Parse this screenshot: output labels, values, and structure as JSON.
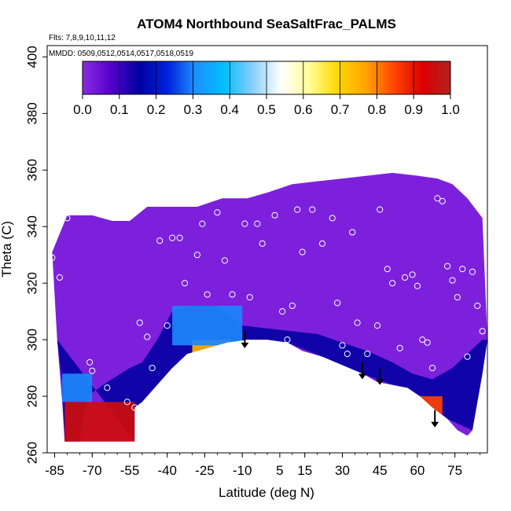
{
  "chart_data": {
    "type": "heatmap",
    "title": "ATOM4 Northbound SeaSaltFrac_PALMS",
    "info_lines": [
      "Flts: 7,8,9,10,11,12",
      "MMDD: 0509,0512,0514,0517,0518,0519"
    ],
    "xlabel": "Latitude (deg N)",
    "ylabel": "Theta (C)",
    "xlim": [
      -88,
      88
    ],
    "ylim": [
      260,
      404
    ],
    "x_ticks": [
      -85,
      -70,
      -55,
      -40,
      -25,
      -10,
      5,
      15,
      30,
      45,
      60,
      75
    ],
    "y_ticks": [
      260,
      280,
      300,
      320,
      340,
      360,
      380,
      400
    ],
    "colorbar": {
      "range": [
        0.0,
        1.0
      ],
      "ticks": [
        "0.0",
        "0.1",
        "0.2",
        "0.3",
        "0.4",
        "0.5",
        "0.6",
        "0.7",
        "0.8",
        "0.9",
        "1.0"
      ],
      "colors": [
        "#8a2be2",
        "#5500cc",
        "#0000a0",
        "#0022dd",
        "#1e90ff",
        "#00bfff",
        "#87cefa",
        "#ffffff",
        "#ffff99",
        "#ffd700",
        "#ffa500",
        "#ff4500",
        "#dd0000",
        "#b22222"
      ]
    },
    "background_value": 0.02,
    "regions": [
      {
        "name": "antarctic-high-fraction",
        "lat": [
          -81,
          -53
        ],
        "theta": [
          264,
          278
        ],
        "value": 0.95
      },
      {
        "name": "southern-edge-transition",
        "lat": [
          -82,
          -70
        ],
        "theta": [
          278,
          288
        ],
        "value": 0.3
      },
      {
        "name": "subtropical-lower-layer",
        "lat": [
          -30,
          -15
        ],
        "theta": [
          294,
          300
        ],
        "value": 0.75
      },
      {
        "name": "mid-lat-gradient",
        "lat": [
          -38,
          -10
        ],
        "theta": [
          298,
          312
        ],
        "value": 0.3
      },
      {
        "name": "northern-high-fraction",
        "lat": [
          61,
          70
        ],
        "theta": [
          266,
          280
        ],
        "value": 0.85
      }
    ],
    "arrows": [
      {
        "lat": -9,
        "theta": 297
      },
      {
        "lat": 38,
        "theta": 286
      },
      {
        "lat": 45,
        "theta": 284
      },
      {
        "lat": 67,
        "theta": 269
      }
    ],
    "sample_points": [
      [
        -86,
        329
      ],
      [
        -83,
        322
      ],
      [
        -80,
        343
      ],
      [
        -71,
        292
      ],
      [
        -70,
        289
      ],
      [
        -64,
        283
      ],
      [
        -56,
        278
      ],
      [
        -53,
        276
      ],
      [
        -51,
        306
      ],
      [
        -48,
        301
      ],
      [
        -46,
        290
      ],
      [
        -43,
        335
      ],
      [
        -40,
        305
      ],
      [
        -38,
        336
      ],
      [
        -35,
        336
      ],
      [
        -33,
        320
      ],
      [
        -28,
        330
      ],
      [
        -26,
        341
      ],
      [
        -24,
        316
      ],
      [
        -20,
        345
      ],
      [
        -17,
        328
      ],
      [
        -14,
        316
      ],
      [
        -9,
        341
      ],
      [
        -7,
        315
      ],
      [
        -4,
        341
      ],
      [
        -2,
        334
      ],
      [
        3,
        344
      ],
      [
        6,
        310
      ],
      [
        8,
        300
      ],
      [
        10,
        312
      ],
      [
        12,
        346
      ],
      [
        14,
        331
      ],
      [
        18,
        346
      ],
      [
        22,
        334
      ],
      [
        26,
        343
      ],
      [
        28,
        313
      ],
      [
        30,
        298
      ],
      [
        32,
        295
      ],
      [
        34,
        338
      ],
      [
        36,
        306
      ],
      [
        40,
        295
      ],
      [
        44,
        305
      ],
      [
        45,
        346
      ],
      [
        48,
        325
      ],
      [
        50,
        320
      ],
      [
        53,
        297
      ],
      [
        55,
        322
      ],
      [
        58,
        323
      ],
      [
        60,
        319
      ],
      [
        62,
        300
      ],
      [
        64,
        299
      ],
      [
        66,
        290
      ],
      [
        68,
        350
      ],
      [
        70,
        349
      ],
      [
        72,
        326
      ],
      [
        74,
        321
      ],
      [
        76,
        315
      ],
      [
        78,
        325
      ],
      [
        80,
        294
      ],
      [
        82,
        324
      ],
      [
        84,
        312
      ],
      [
        86,
        303
      ]
    ]
  }
}
